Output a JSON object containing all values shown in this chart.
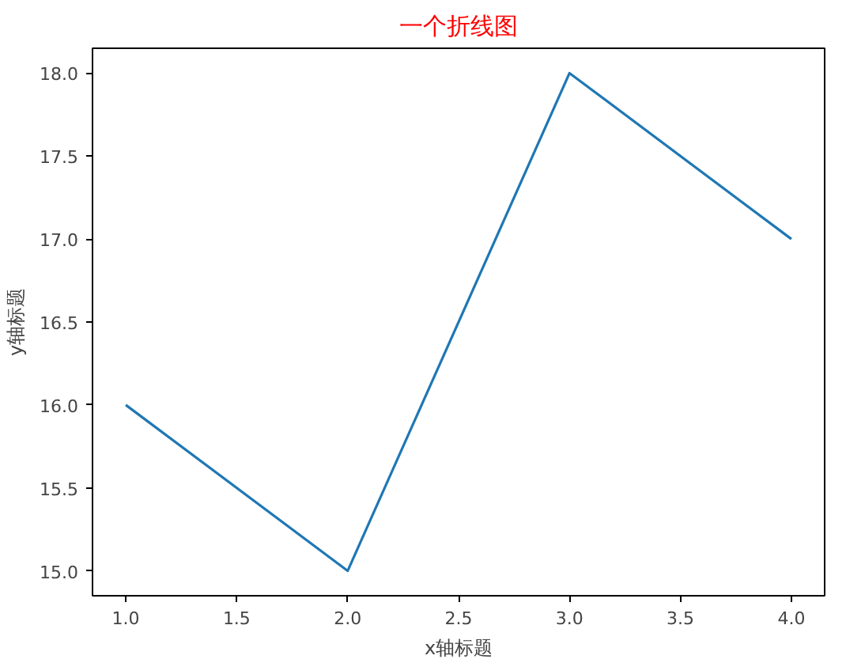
{
  "chart_data": {
    "type": "line",
    "title": "一个折线图",
    "xlabel": "x轴标题",
    "ylabel": "y轴标题",
    "x": [
      1,
      2,
      3,
      4
    ],
    "series": [
      {
        "color": "#1f77b4",
        "values": [
          16,
          15,
          18,
          17
        ]
      }
    ],
    "xlim": [
      0.85,
      4.15
    ],
    "ylim": [
      14.85,
      18.15
    ],
    "xticks": [
      {
        "value": 1,
        "label": "1.0"
      },
      {
        "value": 1.5,
        "label": "1.5"
      },
      {
        "value": 2,
        "label": "2.0"
      },
      {
        "value": 2.5,
        "label": "2.5"
      },
      {
        "value": 3,
        "label": "3.0"
      },
      {
        "value": 3.5,
        "label": "3.5"
      },
      {
        "value": 4,
        "label": "4.0"
      }
    ],
    "yticks": [
      {
        "value": 15,
        "label": "15.0"
      },
      {
        "value": 15.5,
        "label": "15.5"
      },
      {
        "value": 16,
        "label": "16.0"
      },
      {
        "value": 16.5,
        "label": "16.5"
      },
      {
        "value": 17,
        "label": "17.0"
      },
      {
        "value": 17.5,
        "label": "17.5"
      },
      {
        "value": 18,
        "label": "18.0"
      }
    ],
    "grid": false,
    "line_style": "solid"
  }
}
